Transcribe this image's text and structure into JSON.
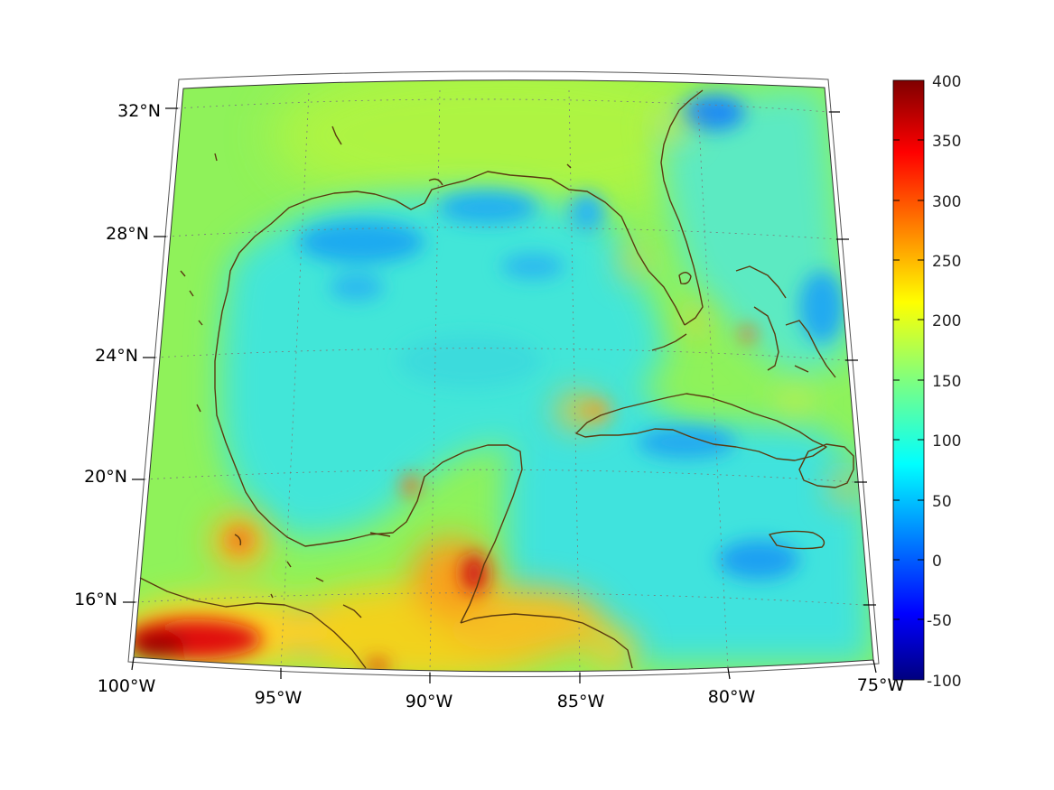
{
  "map": {
    "lat_labels": [
      "32°N",
      "28°N",
      "24°N",
      "20°N",
      "16°N"
    ],
    "lon_labels": [
      "100°W",
      "95°W",
      "90°W",
      "85°W",
      "80°W",
      "75°W"
    ],
    "extent": {
      "lon": [
        -100,
        -75
      ],
      "lat": [
        14.5,
        33
      ]
    },
    "background_color": "#8ff25a",
    "coastline_color": "#5a3a10"
  },
  "colorbar": {
    "ticks": [
      "400",
      "350",
      "300",
      "250",
      "200",
      "150",
      "100",
      "50",
      "0",
      "-50",
      "-100"
    ],
    "range": [
      -100,
      400
    ],
    "colormap": "jet"
  }
}
